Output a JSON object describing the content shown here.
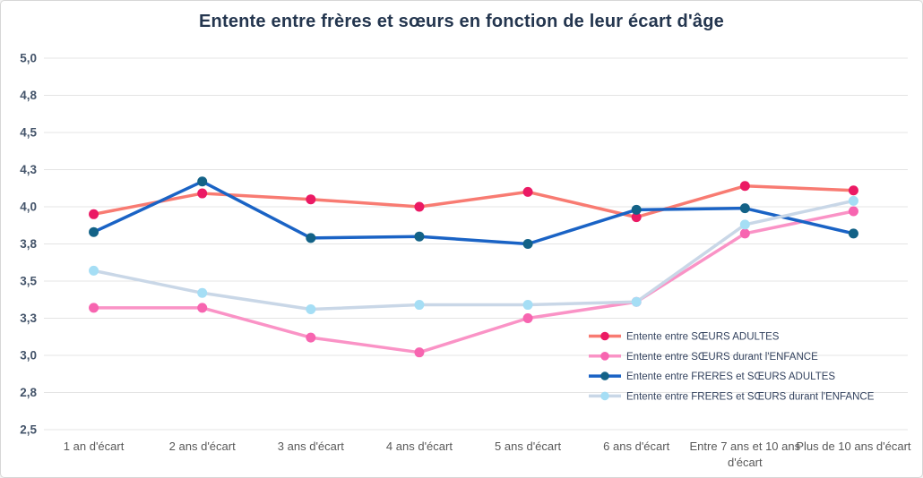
{
  "chart_data": {
    "type": "line",
    "title": "Entente entre frères et sœurs en fonction de leur écart d'âge",
    "categories": [
      "1 an d'écart",
      "2 ans d'écart",
      "3 ans d'écart",
      "4 ans d'écart",
      "5 ans d'écart",
      "6 ans d'écart",
      "Entre 7 ans et 10 ans d'écart",
      "Plus de 10 ans d'écart"
    ],
    "series": [
      {
        "name": "Entente entre SŒURS ADULTES",
        "line_color": "#f87b72",
        "marker_color": "#eb1a64",
        "values": [
          3.95,
          4.09,
          4.05,
          4.0,
          4.1,
          3.93,
          4.14,
          4.11
        ]
      },
      {
        "name": "Entente entre SŒURS durant l'ENFANCE",
        "line_color": "#fa93c6",
        "marker_color": "#f765b0",
        "values": [
          3.32,
          3.32,
          3.12,
          3.02,
          3.25,
          3.36,
          3.82,
          3.97
        ]
      },
      {
        "name": "Entente entre FRERES et SŒURS ADULTES",
        "line_color": "#1a63c5",
        "marker_color": "#136287",
        "values": [
          3.83,
          4.17,
          3.79,
          3.8,
          3.75,
          3.98,
          3.99,
          3.82
        ]
      },
      {
        "name": "Entente entre FRERES et SŒURS durant l'ENFANCE",
        "line_color": "#c9d7e7",
        "marker_color": "#a5def5",
        "values": [
          3.57,
          3.42,
          3.31,
          3.34,
          3.34,
          3.36,
          3.88,
          4.04
        ]
      }
    ],
    "y_axis": {
      "min": 2.5,
      "max": 5.0,
      "step": 0.25,
      "tick_labels": [
        "2,5",
        "2,8",
        "3,0",
        "3,3",
        "3,5",
        "3,8",
        "4,0",
        "4,3",
        "4,5",
        "4,8",
        "5,0"
      ]
    },
    "x_axis": {
      "label": ""
    },
    "grid": true,
    "legend_position": "inside-right"
  }
}
